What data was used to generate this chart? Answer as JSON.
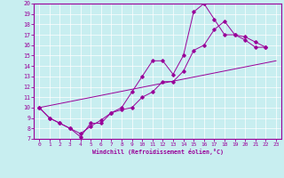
{
  "xlabel": "Windchill (Refroidissement éolien,°C)",
  "xlim": [
    -0.5,
    23.5
  ],
  "ylim": [
    7,
    20
  ],
  "xticks": [
    0,
    1,
    2,
    3,
    4,
    5,
    6,
    7,
    8,
    9,
    10,
    11,
    12,
    13,
    14,
    15,
    16,
    17,
    18,
    19,
    20,
    21,
    22,
    23
  ],
  "yticks": [
    7,
    8,
    9,
    10,
    11,
    12,
    13,
    14,
    15,
    16,
    17,
    18,
    19,
    20
  ],
  "bg_color": "#c8eef0",
  "line_color": "#990099",
  "grid_color": "#ffffff",
  "line1_x": [
    0,
    1,
    2,
    3,
    4,
    5,
    6,
    7,
    8,
    9,
    10,
    11,
    12,
    13,
    14,
    15,
    16,
    17,
    18,
    19,
    20,
    21,
    22
  ],
  "line1_y": [
    10,
    9,
    8.5,
    8,
    7.2,
    8.5,
    8.5,
    9.5,
    10,
    11.5,
    13,
    14.5,
    14.5,
    13.2,
    15,
    19.2,
    20.0,
    18.5,
    17.0,
    17.0,
    16.5,
    15.8,
    15.8
  ],
  "line2_x": [
    0,
    1,
    2,
    3,
    4,
    5,
    6,
    7,
    8,
    9,
    10,
    11,
    12,
    13,
    14,
    15,
    16,
    17,
    18,
    19,
    20,
    21,
    22
  ],
  "line2_y": [
    10,
    9.0,
    8.5,
    8.0,
    7.5,
    8.2,
    8.8,
    9.5,
    9.8,
    10.0,
    11.0,
    11.5,
    12.5,
    12.5,
    13.5,
    15.5,
    16.0,
    17.5,
    18.3,
    17.0,
    16.8,
    16.3,
    15.8
  ],
  "line3_x": [
    0,
    23
  ],
  "line3_y": [
    10,
    14.5
  ]
}
